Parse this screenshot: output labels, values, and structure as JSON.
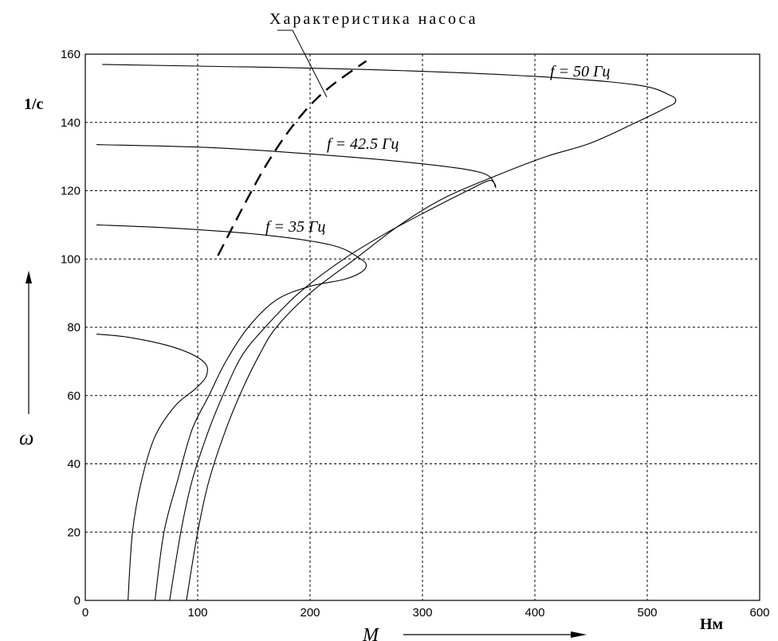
{
  "chart_data": {
    "type": "line",
    "title": "",
    "xlabel": "M",
    "x_unit": "Нм",
    "ylabel": "ω",
    "y_unit": "1/c",
    "xlim": [
      0,
      600
    ],
    "ylim": [
      0,
      160
    ],
    "x_ticks": [
      "0",
      "100",
      "200",
      "300",
      "400",
      "500",
      "600"
    ],
    "y_ticks": [
      "0",
      "20",
      "40",
      "60",
      "80",
      "100",
      "120",
      "140",
      "160"
    ],
    "grid": true,
    "series": [
      {
        "name": "f = 50 Гц",
        "points": [
          [
            90,
            0
          ],
          [
            100,
            20
          ],
          [
            110,
            35
          ],
          [
            125,
            50
          ],
          [
            140,
            62
          ],
          [
            155,
            72
          ],
          [
            170,
            80
          ],
          [
            200,
            90
          ],
          [
            240,
            100
          ],
          [
            280,
            110
          ],
          [
            320,
            118
          ],
          [
            370,
            125
          ],
          [
            410,
            130
          ],
          [
            450,
            134
          ],
          [
            490,
            140
          ],
          [
            515,
            144
          ],
          [
            525,
            146
          ],
          [
            520,
            148
          ],
          [
            490,
            151
          ],
          [
            400,
            153.5
          ],
          [
            250,
            155.5
          ],
          [
            100,
            156.5
          ],
          [
            15,
            157
          ]
        ]
      },
      {
        "name": "f = 42.5 Гц",
        "points": [
          [
            75,
            0
          ],
          [
            85,
            20
          ],
          [
            95,
            35
          ],
          [
            110,
            50
          ],
          [
            125,
            62
          ],
          [
            140,
            72
          ],
          [
            160,
            80
          ],
          [
            190,
            90
          ],
          [
            230,
            100
          ],
          [
            270,
            108
          ],
          [
            310,
            115
          ],
          [
            340,
            120
          ],
          [
            360,
            123
          ],
          [
            365,
            121
          ],
          [
            355,
            125
          ],
          [
            310,
            127.5
          ],
          [
            230,
            130
          ],
          [
            120,
            132.5
          ],
          [
            10,
            133.5
          ]
        ]
      },
      {
        "name": "f = 35 Гц",
        "points": [
          [
            62,
            0
          ],
          [
            70,
            20
          ],
          [
            82,
            35
          ],
          [
            95,
            50
          ],
          [
            110,
            60
          ],
          [
            125,
            70
          ],
          [
            145,
            80
          ],
          [
            170,
            88
          ],
          [
            200,
            92
          ],
          [
            230,
            94
          ],
          [
            245,
            96
          ],
          [
            250,
            98
          ],
          [
            245,
            100
          ],
          [
            220,
            104
          ],
          [
            160,
            107
          ],
          [
            80,
            109
          ],
          [
            10,
            110
          ]
        ]
      },
      {
        "name": "",
        "points": [
          [
            38,
            0
          ],
          [
            42,
            20
          ],
          [
            50,
            35
          ],
          [
            62,
            48
          ],
          [
            80,
            57
          ],
          [
            98,
            62
          ],
          [
            108,
            66
          ],
          [
            105,
            70
          ],
          [
            80,
            74
          ],
          [
            40,
            77
          ],
          [
            10,
            78
          ]
        ]
      },
      {
        "name": "Характеристика насоса",
        "points": [
          [
            118,
            101
          ],
          [
            140,
            115
          ],
          [
            160,
            127
          ],
          [
            180,
            137
          ],
          [
            200,
            145
          ],
          [
            220,
            151
          ],
          [
            250,
            158
          ]
        ]
      }
    ],
    "annotations": [
      {
        "text": "f = 50 Гц",
        "near": [
          525,
          152
        ]
      },
      {
        "text": "f = 42.5 Гц",
        "near": [
          250,
          133
        ]
      },
      {
        "text": "f = 35 Гц",
        "near": [
          190,
          110
        ]
      }
    ]
  },
  "labels": {
    "pump_label": "Характеристика насоса",
    "y_unit": "1/c",
    "x_unit": "Нм",
    "x_symbol": "M",
    "y_symbol": "ω",
    "f50": "f = 50 Гц",
    "f42": "f = 42.5 Гц",
    "f35": "f = 35 Гц"
  }
}
